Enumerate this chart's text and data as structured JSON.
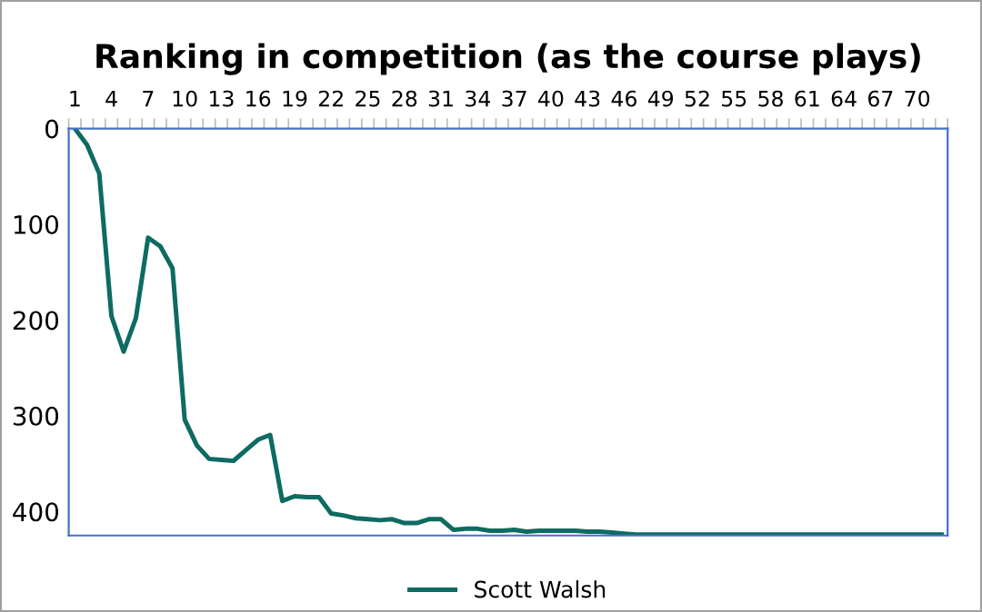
{
  "chart_data": {
    "type": "line",
    "title": "Ranking in competition (as the course plays)",
    "categories": [
      "1",
      null,
      null,
      "4",
      null,
      null,
      "7",
      null,
      null,
      "10",
      null,
      null,
      "13",
      null,
      null,
      "16",
      null,
      null,
      "19",
      null,
      null,
      "22",
      null,
      null,
      "25",
      null,
      null,
      "28",
      null,
      null,
      "31",
      null,
      null,
      "34",
      null,
      null,
      "37",
      null,
      null,
      "40",
      null,
      null,
      "43",
      null,
      null,
      "46",
      null,
      null,
      "49",
      null,
      null,
      "52",
      null,
      null,
      "55",
      null,
      null,
      "58",
      null,
      null,
      "61",
      null,
      null,
      "64",
      null,
      null,
      "67",
      null,
      null,
      "70",
      null,
      null
    ],
    "series": [
      {
        "name": "Scott Walsh",
        "color": "#0e6b62",
        "values": [
          0,
          17,
          47,
          196,
          233,
          198,
          114,
          123,
          146,
          304,
          331,
          345,
          346,
          347,
          336,
          325,
          320,
          389,
          384,
          385,
          385,
          402,
          404,
          407,
          408,
          409,
          408,
          412,
          412,
          408,
          408,
          419,
          418,
          418,
          420,
          420,
          419,
          421,
          420,
          420,
          420,
          420,
          421,
          421,
          422,
          423,
          424,
          424,
          424,
          424,
          424,
          424,
          424,
          424,
          424,
          424,
          424,
          424,
          424,
          424,
          424,
          424,
          424,
          424,
          424,
          424,
          424,
          424,
          424,
          424,
          424,
          424
        ]
      }
    ],
    "ylim": [
      425,
      0
    ],
    "yticks": [
      0,
      100,
      200,
      300,
      400
    ],
    "grid": false,
    "legend": "bottom",
    "marker": "none",
    "line_style": "solid"
  }
}
